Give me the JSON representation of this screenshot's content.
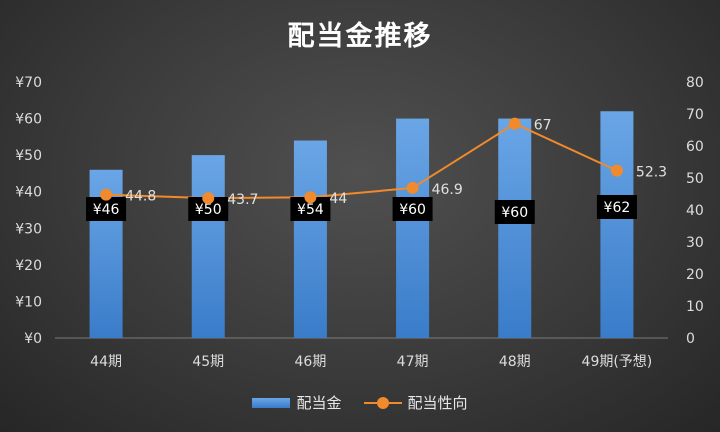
{
  "chart_data": {
    "type": "bar",
    "title": "配当金推移",
    "categories": [
      "44期",
      "45期",
      "46期",
      "47期",
      "48期",
      "49期(予想)"
    ],
    "series": [
      {
        "name": "配当金",
        "type": "bar",
        "axis": "left",
        "values": [
          46,
          50,
          54,
          60,
          60,
          62
        ],
        "data_labels": [
          "¥46",
          "¥50",
          "¥54",
          "¥60",
          "¥60",
          "¥62"
        ],
        "color": "#4a8fdc"
      },
      {
        "name": "配当性向",
        "type": "line",
        "axis": "right",
        "values": [
          44.8,
          43.7,
          44,
          46.9,
          67,
          52.3
        ],
        "data_labels": [
          "44.8",
          "43.7",
          "44",
          "46.9",
          "67",
          "52.3"
        ],
        "color": "#f08a2c"
      }
    ],
    "y_left": {
      "ylim": [
        0,
        70
      ],
      "ticks": [
        0,
        10,
        20,
        30,
        40,
        50,
        60,
        70
      ],
      "tick_labels": [
        "¥0",
        "¥10",
        "¥20",
        "¥30",
        "¥40",
        "¥50",
        "¥60",
        "¥70"
      ]
    },
    "y_right": {
      "ylim": [
        0,
        80
      ],
      "ticks": [
        0,
        10,
        20,
        30,
        40,
        50,
        60,
        70,
        80
      ],
      "tick_labels": [
        "0",
        "10",
        "20",
        "30",
        "40",
        "50",
        "60",
        "70",
        "80"
      ]
    },
    "grid": false,
    "legend": "bottom",
    "background": "#3a3a3a"
  }
}
